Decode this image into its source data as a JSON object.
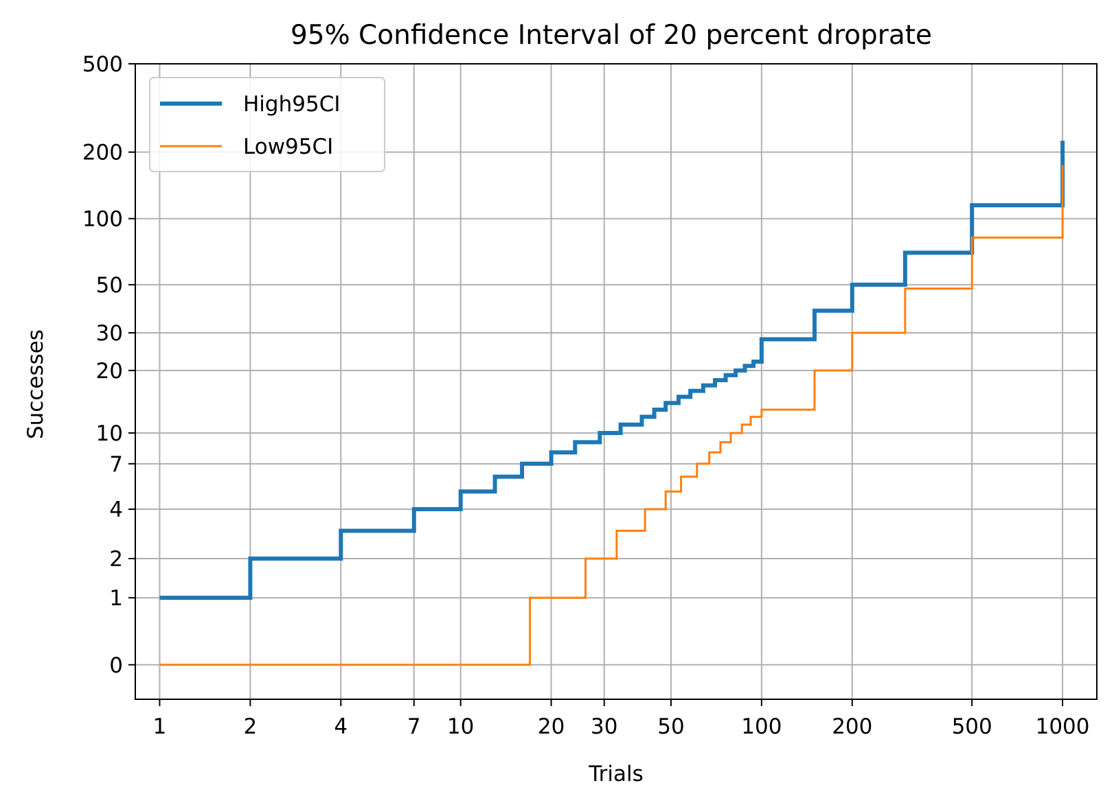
{
  "chart_data": {
    "type": "line",
    "title": "95% Confidence Interval of 20 percent droprate",
    "xlabel": "Trials",
    "ylabel": "Successes",
    "x_scale": "log",
    "y_scale": "log(1+y)",
    "xlim": [
      0.83,
      1300
    ],
    "ylim": [
      -0.3,
      500
    ],
    "x_ticks": [
      1,
      2,
      4,
      7,
      10,
      20,
      30,
      50,
      100,
      200,
      500,
      1000
    ],
    "x_tick_labels": [
      "1",
      "2",
      "4",
      "7",
      "10",
      "20",
      "30",
      "50",
      "100",
      "200",
      "500",
      "1000"
    ],
    "y_ticks": [
      0,
      1,
      2,
      4,
      7,
      10,
      20,
      30,
      50,
      100,
      200,
      500
    ],
    "y_tick_labels": [
      "0",
      "1",
      "2",
      "4",
      "7",
      "10",
      "20",
      "30",
      "50",
      "100",
      "200",
      "500"
    ],
    "grid": true,
    "legend_position": "top-left",
    "series": [
      {
        "name": "High95CI",
        "color": "#1f77b4",
        "x": [
          1,
          2,
          4,
          7,
          10,
          13,
          16,
          20,
          24,
          29,
          34,
          40,
          44,
          48,
          53,
          58,
          64,
          70,
          76,
          82,
          88,
          94,
          100,
          150,
          200,
          300,
          500,
          1000
        ],
        "y": [
          1,
          2,
          3,
          4,
          5,
          6,
          7,
          8,
          9,
          10,
          11,
          12,
          13,
          14,
          15,
          16,
          17,
          18,
          19,
          20,
          21,
          22,
          28,
          38,
          50,
          70,
          115,
          225
        ]
      },
      {
        "name": "Low95CI",
        "color": "#ff7f0e",
        "x": [
          1,
          17,
          26,
          33,
          41,
          48,
          54,
          61,
          67,
          73,
          79,
          86,
          92,
          100,
          150,
          200,
          300,
          500,
          1000
        ],
        "y": [
          0,
          1,
          2,
          3,
          4,
          5,
          6,
          7,
          8,
          9,
          10,
          11,
          12,
          13,
          20,
          30,
          48,
          82,
          175
        ]
      }
    ]
  }
}
